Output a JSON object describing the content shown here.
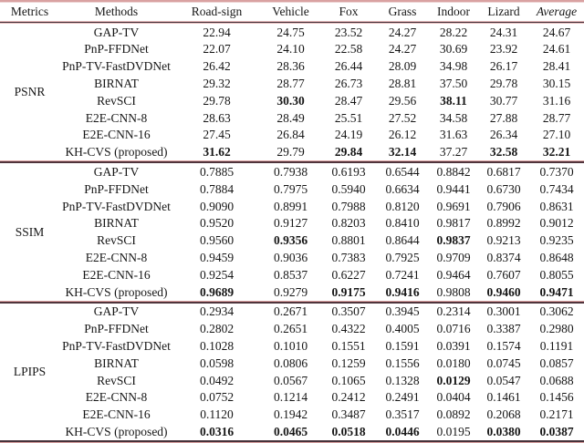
{
  "colors": {
    "background": "#ffffff",
    "text": "#161616",
    "rule_pink": "#d9a1a1",
    "rule_dark": "#46323a"
  },
  "table": {
    "headers": [
      "Metrics",
      "Methods",
      "Road-sign",
      "Vehicle",
      "Fox",
      "Grass",
      "Indoor",
      "Lizard",
      "Average"
    ],
    "groups": [
      {
        "metric": "PSNR",
        "rows": [
          {
            "method": "GAP-TV",
            "values": [
              "22.94",
              "24.75",
              "23.52",
              "24.27",
              "28.22",
              "24.31",
              "24.67"
            ],
            "bold": []
          },
          {
            "method": "PnP-FFDNet",
            "values": [
              "22.07",
              "24.10",
              "22.58",
              "24.27",
              "30.69",
              "23.92",
              "24.61"
            ],
            "bold": []
          },
          {
            "method": "PnP-TV-FastDVDNet",
            "values": [
              "26.42",
              "28.36",
              "26.44",
              "28.09",
              "34.98",
              "26.17",
              "28.41"
            ],
            "bold": []
          },
          {
            "method": "BIRNAT",
            "values": [
              "29.32",
              "28.77",
              "26.73",
              "28.81",
              "37.50",
              "29.78",
              "30.15"
            ],
            "bold": []
          },
          {
            "method": "RevSCI",
            "values": [
              "29.78",
              "30.30",
              "28.47",
              "29.56",
              "38.11",
              "30.77",
              "31.16"
            ],
            "bold": [
              1,
              4
            ]
          },
          {
            "method": "E2E-CNN-8",
            "values": [
              "28.63",
              "28.49",
              "25.51",
              "27.52",
              "34.58",
              "27.88",
              "28.77"
            ],
            "bold": []
          },
          {
            "method": "E2E-CNN-16",
            "values": [
              "27.45",
              "26.84",
              "24.19",
              "26.12",
              "31.63",
              "26.34",
              "27.10"
            ],
            "bold": []
          },
          {
            "method": "KH-CVS (proposed)",
            "values": [
              "31.62",
              "29.79",
              "29.84",
              "32.14",
              "37.27",
              "32.58",
              "32.21"
            ],
            "bold": [
              0,
              2,
              3,
              5,
              6
            ]
          }
        ]
      },
      {
        "metric": "SSIM",
        "rows": [
          {
            "method": "GAP-TV",
            "values": [
              "0.7885",
              "0.7938",
              "0.6193",
              "0.6544",
              "0.8842",
              "0.6817",
              "0.7370"
            ],
            "bold": []
          },
          {
            "method": "PnP-FFDNet",
            "values": [
              "0.7884",
              "0.7975",
              "0.5940",
              "0.6634",
              "0.9441",
              "0.6730",
              "0.7434"
            ],
            "bold": []
          },
          {
            "method": "PnP-TV-FastDVDNet",
            "values": [
              "0.9090",
              "0.8991",
              "0.7988",
              "0.8120",
              "0.9691",
              "0.7906",
              "0.8631"
            ],
            "bold": []
          },
          {
            "method": "BIRNAT",
            "values": [
              "0.9520",
              "0.9127",
              "0.8203",
              "0.8410",
              "0.9817",
              "0.8992",
              "0.9012"
            ],
            "bold": []
          },
          {
            "method": "RevSCI",
            "values": [
              "0.9560",
              "0.9356",
              "0.8801",
              "0.8644",
              "0.9837",
              "0.9213",
              "0.9235"
            ],
            "bold": [
              1,
              4
            ]
          },
          {
            "method": "E2E-CNN-8",
            "values": [
              "0.9459",
              "0.9036",
              "0.7383",
              "0.7925",
              "0.9709",
              "0.8374",
              "0.8648"
            ],
            "bold": []
          },
          {
            "method": "E2E-CNN-16",
            "values": [
              "0.9254",
              "0.8537",
              "0.6227",
              "0.7241",
              "0.9464",
              "0.7607",
              "0.8055"
            ],
            "bold": []
          },
          {
            "method": "KH-CVS (proposed)",
            "values": [
              "0.9689",
              "0.9279",
              "0.9175",
              "0.9416",
              "0.9808",
              "0.9460",
              "0.9471"
            ],
            "bold": [
              0,
              2,
              3,
              5,
              6
            ]
          }
        ]
      },
      {
        "metric": "LPIPS",
        "rows": [
          {
            "method": "GAP-TV",
            "values": [
              "0.2934",
              "0.2671",
              "0.3507",
              "0.3945",
              "0.2314",
              "0.3001",
              "0.3062"
            ],
            "bold": []
          },
          {
            "method": "PnP-FFDNet",
            "values": [
              "0.2802",
              "0.2651",
              "0.4322",
              "0.4005",
              "0.0716",
              "0.3387",
              "0.2980"
            ],
            "bold": []
          },
          {
            "method": "PnP-TV-FastDVDNet",
            "values": [
              "0.1028",
              "0.1010",
              "0.1551",
              "0.1591",
              "0.0391",
              "0.1574",
              "0.1191"
            ],
            "bold": []
          },
          {
            "method": "BIRNAT",
            "values": [
              "0.0598",
              "0.0806",
              "0.1259",
              "0.1556",
              "0.0180",
              "0.0745",
              "0.0857"
            ],
            "bold": []
          },
          {
            "method": "RevSCI",
            "values": [
              "0.0492",
              "0.0567",
              "0.1065",
              "0.1328",
              "0.0129",
              "0.0547",
              "0.0688"
            ],
            "bold": [
              4
            ]
          },
          {
            "method": "E2E-CNN-8",
            "values": [
              "0.0752",
              "0.1214",
              "0.2412",
              "0.2491",
              "0.0404",
              "0.1461",
              "0.1456"
            ],
            "bold": []
          },
          {
            "method": "E2E-CNN-16",
            "values": [
              "0.1120",
              "0.1942",
              "0.3487",
              "0.3517",
              "0.0892",
              "0.2068",
              "0.2171"
            ],
            "bold": []
          },
          {
            "method": "KH-CVS (proposed)",
            "values": [
              "0.0316",
              "0.0465",
              "0.0518",
              "0.0446",
              "0.0195",
              "0.0380",
              "0.0387"
            ],
            "bold": [
              0,
              1,
              2,
              3,
              5,
              6
            ]
          }
        ]
      }
    ]
  }
}
